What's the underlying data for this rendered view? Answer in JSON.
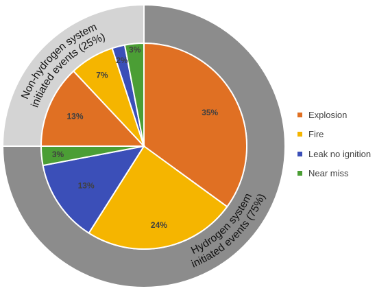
{
  "chart_data": {
    "type": "pie",
    "title": "",
    "inner_pie": {
      "slices": [
        {
          "category": "Explosion",
          "group": "hydrogen",
          "value": 35,
          "label": "35%"
        },
        {
          "category": "Fire",
          "group": "hydrogen",
          "value": 24,
          "label": "24%"
        },
        {
          "category": "Leak no ignition",
          "group": "hydrogen",
          "value": 13,
          "label": "13%"
        },
        {
          "category": "Near miss",
          "group": "hydrogen",
          "value": 3,
          "label": "3%"
        },
        {
          "category": "Explosion",
          "group": "non-hydrogen",
          "value": 13,
          "label": "13%"
        },
        {
          "category": "Fire",
          "group": "non-hydrogen",
          "value": 7,
          "label": "7%"
        },
        {
          "category": "Leak no ignition",
          "group": "non-hydrogen",
          "value": 2,
          "label": "2%"
        },
        {
          "category": "Near miss",
          "group": "non-hydrogen",
          "value": 3,
          "label": "3%"
        }
      ]
    },
    "outer_ring": {
      "segments": [
        {
          "name": "hydrogen",
          "value": 75,
          "text_line1": "Hydrogen system",
          "text_line2": "initiated events (75%)",
          "color": "#8c8c8c"
        },
        {
          "name": "non-hydrogen",
          "value": 25,
          "text_line1": "Non-hydrogen system",
          "text_line2": "initiated events (25%)",
          "color": "#d4d4d4"
        }
      ]
    },
    "legend": {
      "placement": "right",
      "entries": [
        "Explosion",
        "Fire",
        "Leak no ignition",
        "Near miss"
      ]
    },
    "colors": {
      "Explosion": "#e07023",
      "Fire": "#f5b500",
      "Leak no ignition": "#3b4fb8",
      "Near miss": "#4b9e35"
    }
  }
}
